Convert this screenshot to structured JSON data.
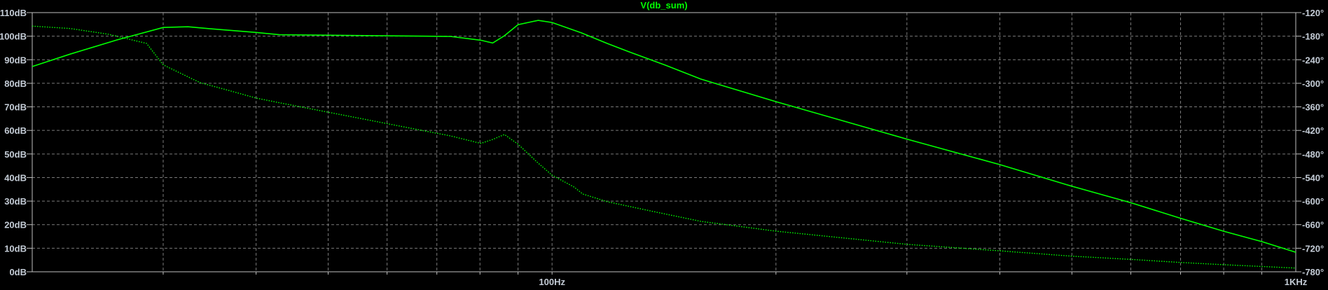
{
  "chart_data": {
    "type": "line",
    "title": "V(db_sum)",
    "x_scale": "log",
    "xlim": [
      20,
      1000
    ],
    "x_tick_labels": [
      {
        "value": 100,
        "label": "100Hz"
      },
      {
        "value": 1000,
        "label": "1KHz"
      }
    ],
    "x_minor_grid": [
      30,
      40,
      50,
      60,
      70,
      80,
      90,
      200,
      300,
      400,
      500,
      600,
      700,
      800,
      900
    ],
    "y_left": {
      "lim": [
        0,
        110
      ],
      "unit": "dB",
      "tick_labels": [
        "0dB",
        "10dB",
        "20dB",
        "30dB",
        "40dB",
        "50dB",
        "60dB",
        "70dB",
        "80dB",
        "90dB",
        "100dB",
        "110dB"
      ]
    },
    "y_right": {
      "lim": [
        -780,
        -120
      ],
      "unit": "°",
      "tick_labels": [
        "-780°",
        "-720°",
        "-660°",
        "-600°",
        "-540°",
        "-480°",
        "-420°",
        "-360°",
        "-300°",
        "-240°",
        "-180°",
        "-120°"
      ]
    },
    "grid": true,
    "background": "#000000",
    "trace_color": "#00ff00",
    "series": [
      {
        "axis": "left",
        "style": "solid",
        "x": [
          20,
          22.5,
          26,
          30,
          32.4,
          34.6,
          40,
          43,
          66.5,
          73,
          80.2,
          83.2,
          86.3,
          90,
          95.8,
          100,
          109.5,
          118.7,
          127.5,
          142,
          158.5,
          200,
          300,
          400,
          500,
          600,
          700,
          800,
          900,
          1000
        ],
        "y": [
          87.1,
          92.4,
          98.4,
          103.7,
          104,
          103.2,
          101.6,
          100.6,
          100,
          99.9,
          98.3,
          97.1,
          100.2,
          104.9,
          106.7,
          105.8,
          101.4,
          96.9,
          93.1,
          87.7,
          81.8,
          72.2,
          56.3,
          45.5,
          36.3,
          29.3,
          22.7,
          17.2,
          12.8,
          8.3
        ]
      },
      {
        "axis": "right",
        "style": "dotted",
        "x": [
          20,
          22.5,
          25.3,
          28.5,
          30,
          33.6,
          37.3,
          40,
          43,
          66.5,
          73,
          80.2,
          83.2,
          86.3,
          90,
          95.6,
          100,
          107,
          110,
          118.7,
          137,
          158.5,
          200,
          300,
          400,
          500,
          600,
          700,
          800,
          1000
        ],
        "y": [
          -154.4,
          -160.5,
          -175,
          -198.5,
          -253,
          -298,
          -321.6,
          -337.6,
          -349.6,
          -419.2,
          -434,
          -453,
          -443,
          -430.4,
          -455,
          -501.8,
          -534,
          -564,
          -582,
          -601.7,
          -626.7,
          -651.6,
          -676.6,
          -710,
          -726.6,
          -740.3,
          -748.5,
          -756.3,
          -762,
          -770.6
        ]
      }
    ]
  }
}
